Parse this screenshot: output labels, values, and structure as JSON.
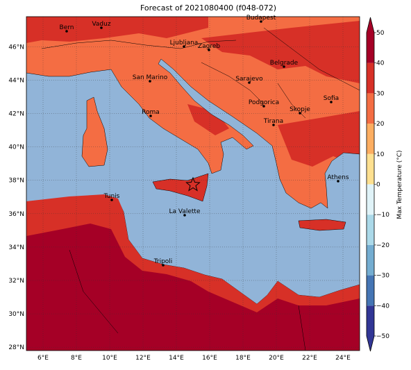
{
  "title": "Forecast of 2021080400 (f048-072)",
  "map": {
    "lonlim": [
      5,
      25
    ],
    "latlim": [
      27.8,
      47.8
    ],
    "lonticks": [
      {
        "value": 6,
        "label": "6°E"
      },
      {
        "value": 8,
        "label": "8°E"
      },
      {
        "value": 10,
        "label": "10°E"
      },
      {
        "value": 12,
        "label": "12°E"
      },
      {
        "value": 14,
        "label": "14°E"
      },
      {
        "value": 16,
        "label": "16°E"
      },
      {
        "value": 18,
        "label": "18°E"
      },
      {
        "value": 20,
        "label": "20°E"
      },
      {
        "value": 22,
        "label": "22°E"
      },
      {
        "value": 24,
        "label": "24°E"
      }
    ],
    "latticks": [
      {
        "value": 28,
        "label": "28°N"
      },
      {
        "value": 30,
        "label": "30°N"
      },
      {
        "value": 32,
        "label": "32°N"
      },
      {
        "value": 34,
        "label": "34°N"
      },
      {
        "value": 36,
        "label": "36°N"
      },
      {
        "value": 38,
        "label": "38°N"
      },
      {
        "value": 40,
        "label": "40°N"
      },
      {
        "value": 42,
        "label": "42°N"
      },
      {
        "value": 44,
        "label": "44°N"
      },
      {
        "value": 46,
        "label": "46°N"
      }
    ],
    "grid": true,
    "cities": [
      "Bern",
      "Vaduz",
      "Budapest",
      "Ljubljana",
      "Zagreb",
      "Belgrade",
      "San Marino",
      "Sarajevo",
      "Podgorica",
      "Sofia",
      "Roma",
      "Skopje",
      "Tirana",
      "Athens",
      "Tunis",
      "La Valette",
      "Tripoli"
    ]
  },
  "colorbar": {
    "label": "Max Temperature (°C)",
    "lim": [
      -50,
      50
    ],
    "ticks": [
      {
        "value": -50,
        "label": "−50"
      },
      {
        "value": -40,
        "label": "−40"
      },
      {
        "value": -30,
        "label": "−30"
      },
      {
        "value": -20,
        "label": "−20"
      },
      {
        "value": -10,
        "label": "−10"
      },
      0,
      10,
      20,
      30,
      40,
      50
    ],
    "colors": [
      "#313695",
      "#4575b4",
      "#74add1",
      "#abd9e9",
      "#e0f3f8",
      "#ffffbf",
      "#fee090",
      "#fdae61",
      "#f46d43",
      "#d73027",
      "#a50026"
    ]
  }
}
